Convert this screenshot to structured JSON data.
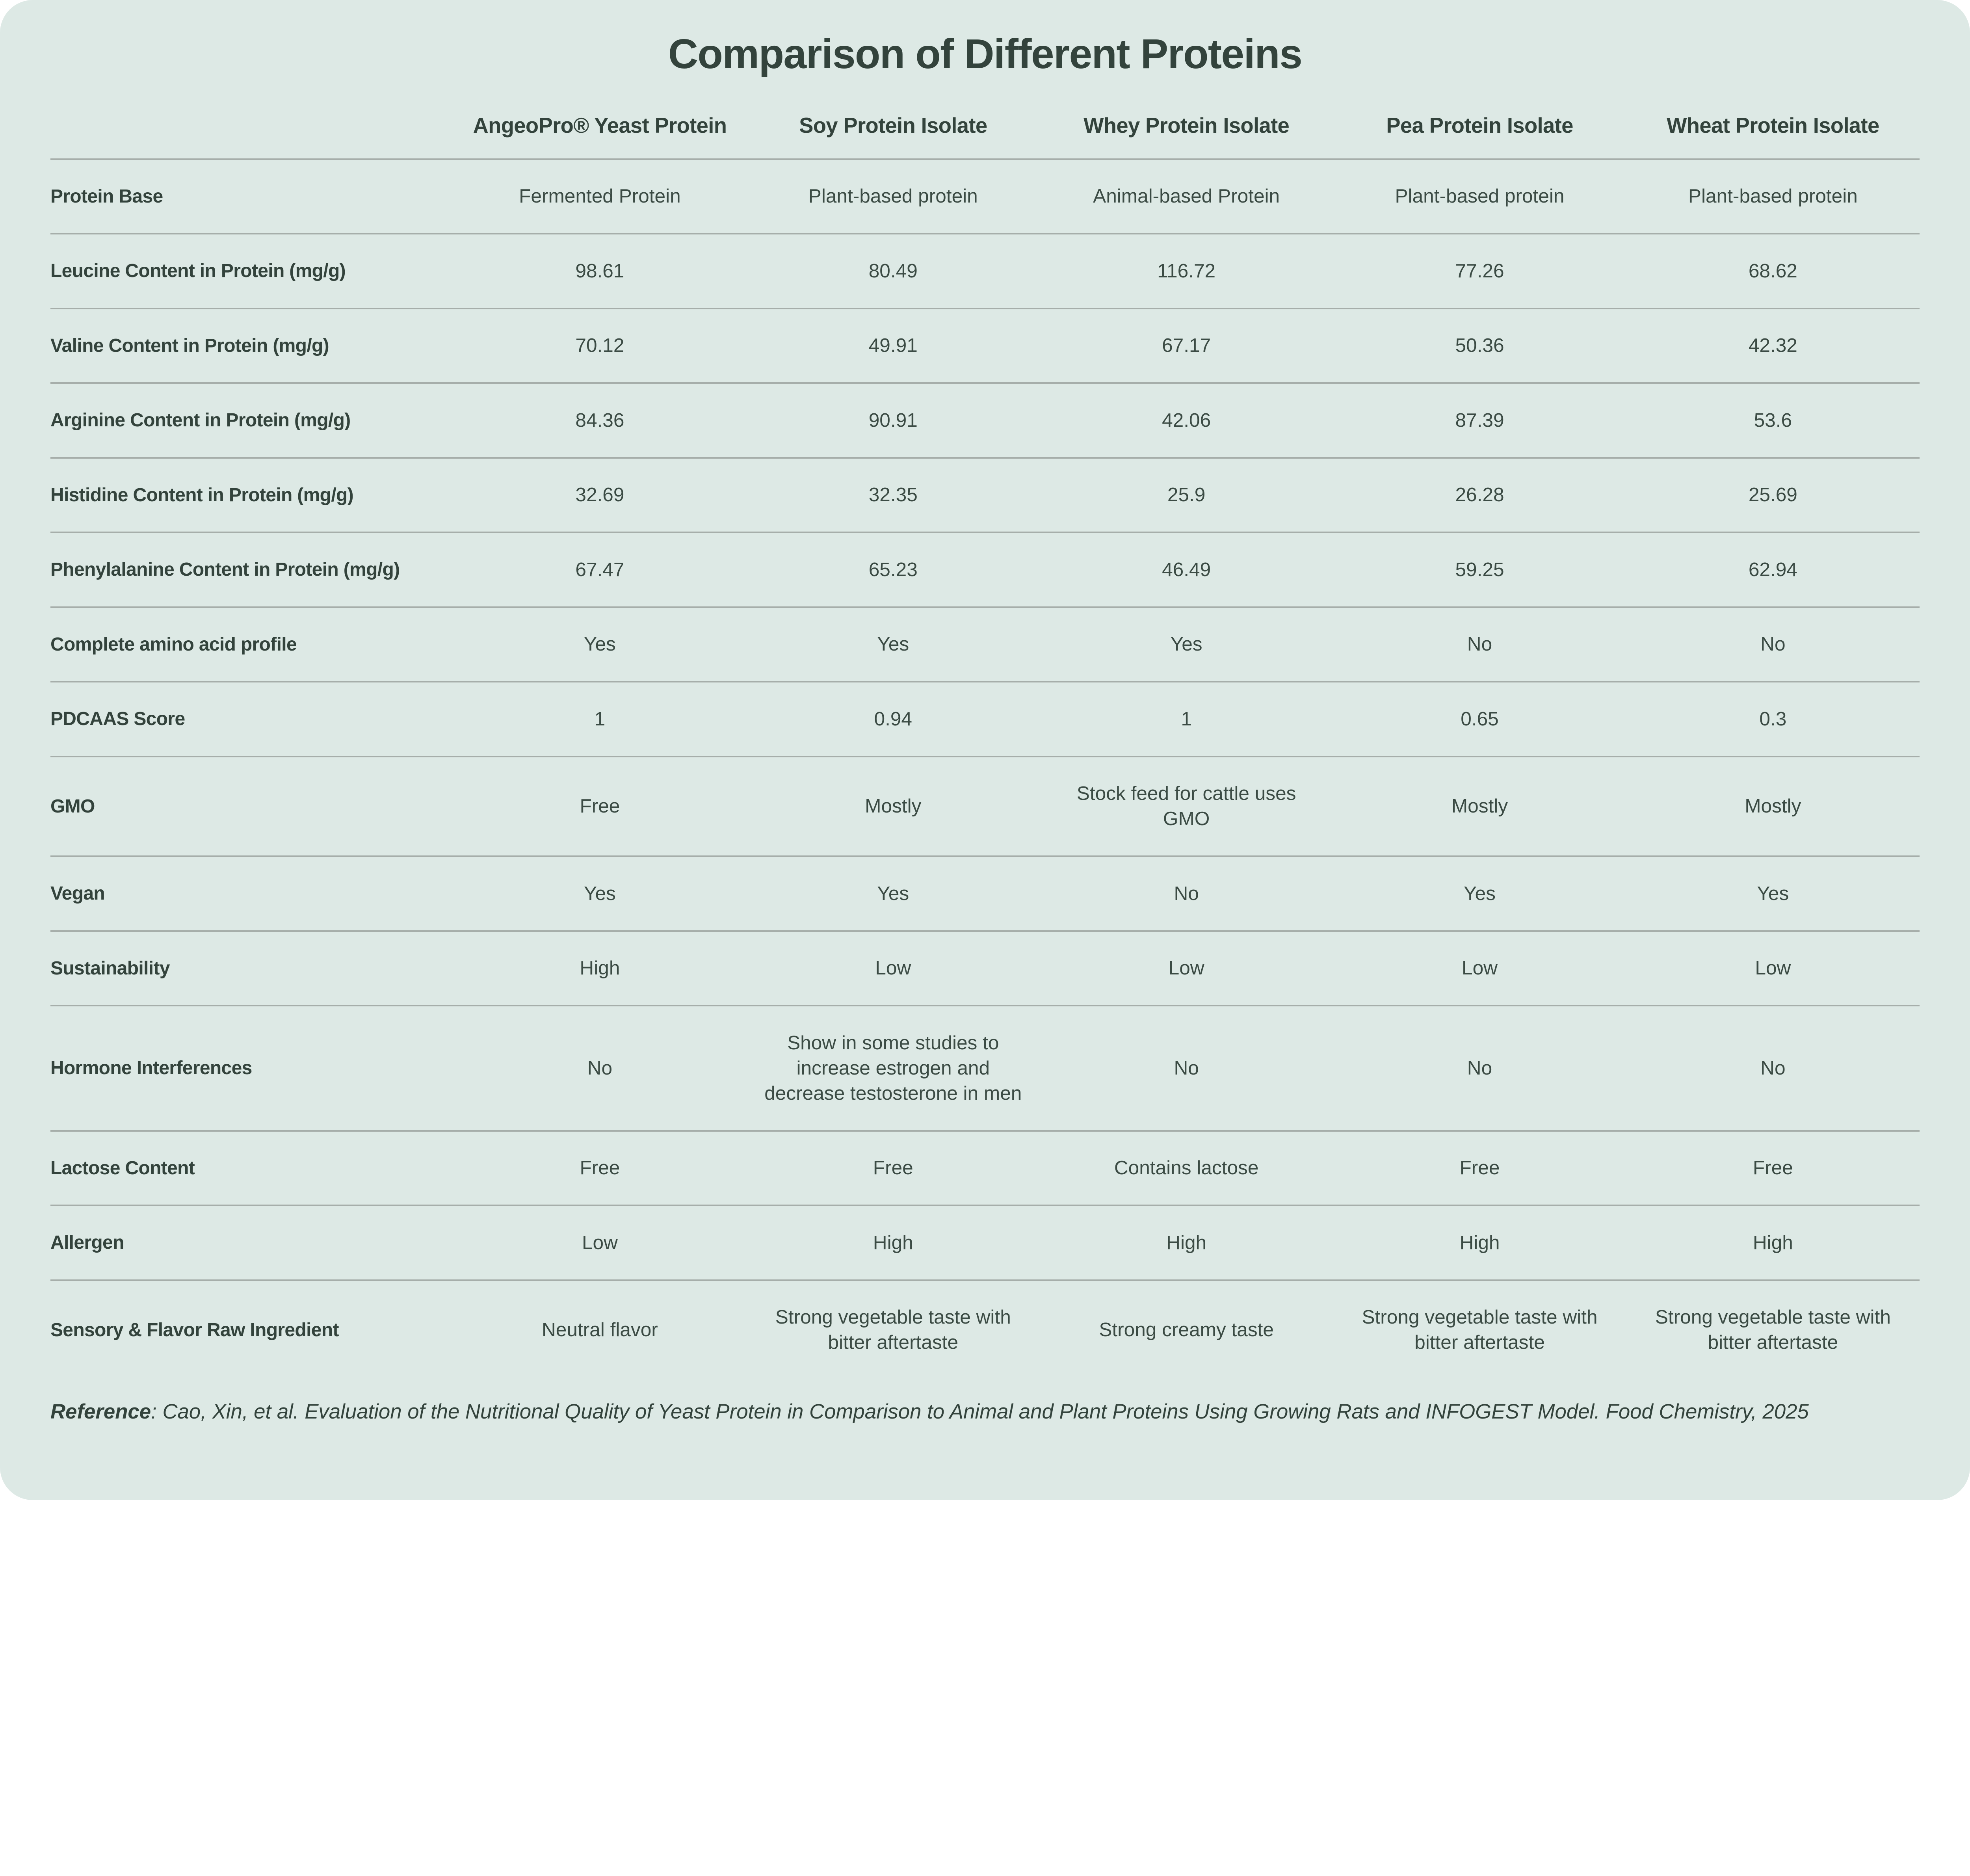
{
  "chart_data": {
    "type": "table",
    "title": "Comparison of Different Proteins",
    "columns": [
      "AngeoPro® Yeast Protein",
      "Soy Protein Isolate",
      "Whey Protein Isolate",
      "Pea Protein Isolate",
      "Wheat Protein Isolate"
    ],
    "rows": [
      {
        "label": "Protein Base",
        "cells": [
          "Fermented Protein",
          "Plant-based protein",
          "Animal-based Protein",
          "Plant-based protein",
          "Plant-based protein"
        ]
      },
      {
        "label": "Leucine Content in Protein (mg/g)",
        "cells": [
          "98.61",
          "80.49",
          "116.72",
          "77.26",
          "68.62"
        ]
      },
      {
        "label": "Valine Content in Protein (mg/g)",
        "cells": [
          "70.12",
          "49.91",
          "67.17",
          "50.36",
          "42.32"
        ]
      },
      {
        "label": "Arginine Content in Protein (mg/g)",
        "cells": [
          "84.36",
          "90.91",
          "42.06",
          "87.39",
          "53.6"
        ]
      },
      {
        "label": "Histidine Content in Protein (mg/g)",
        "cells": [
          "32.69",
          "32.35",
          "25.9",
          "26.28",
          "25.69"
        ]
      },
      {
        "label": "Phenylalanine Content in Protein (mg/g)",
        "cells": [
          "67.47",
          "65.23",
          "46.49",
          "59.25",
          "62.94"
        ]
      },
      {
        "label": "Complete amino acid profile",
        "cells": [
          "Yes",
          "Yes",
          "Yes",
          "No",
          "No"
        ]
      },
      {
        "label": "PDCAAS Score",
        "cells": [
          "1",
          "0.94",
          "1",
          "0.65",
          "0.3"
        ]
      },
      {
        "label": "GMO",
        "cells": [
          "Free",
          "Mostly",
          "Stock feed for cattle uses GMO",
          "Mostly",
          "Mostly"
        ]
      },
      {
        "label": "Vegan",
        "cells": [
          "Yes",
          "Yes",
          "No",
          "Yes",
          "Yes"
        ]
      },
      {
        "label": "Sustainability",
        "cells": [
          "High",
          "Low",
          "Low",
          "Low",
          "Low"
        ]
      },
      {
        "label": "Hormone Interferences",
        "cells": [
          "No",
          "Show in some studies to increase estrogen and decrease testosterone in men",
          "No",
          "No",
          "No"
        ]
      },
      {
        "label": "Lactose Content",
        "cells": [
          "Free",
          "Free",
          "Contains lactose",
          "Free",
          "Free"
        ]
      },
      {
        "label": "Allergen",
        "cells": [
          "Low",
          "High",
          "High",
          "High",
          "High"
        ]
      },
      {
        "label": "Sensory & Flavor Raw Ingredient",
        "cells": [
          "Neutral flavor",
          "Strong vegetable taste with bitter aftertaste",
          "Strong creamy taste",
          "Strong vegetable taste with bitter aftertaste",
          "Strong vegetable taste with bitter aftertaste"
        ]
      }
    ]
  },
  "reference": {
    "label": "Reference",
    "separator": ": ",
    "text": "Cao, Xin, et al. Evaluation of the Nutritional Quality of Yeast Protein in Comparison to Animal and Plant Proteins Using Growing Rats and INFOGEST Model. Food Chemistry, 2025"
  },
  "colors": {
    "card_background": "#dde9e5",
    "text": "#3b4b44",
    "divider": "#a6aeaa",
    "page_background": "#ffffff"
  }
}
